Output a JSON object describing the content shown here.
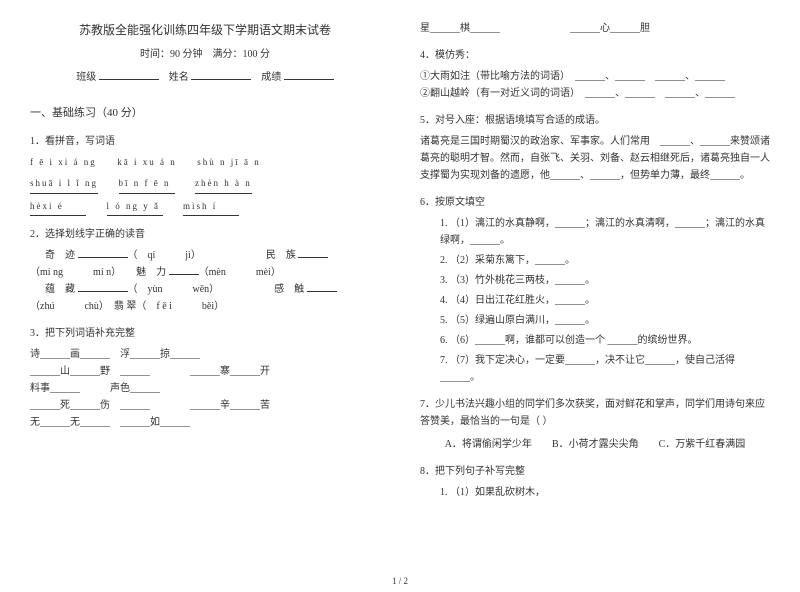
{
  "header": {
    "title": "苏教版全能强化训练四年级下学期语文期末试卷",
    "time_label": "时间：",
    "time_value": "90 分钟",
    "score_label": "满分：",
    "score_value": "100 分",
    "class_label": "班级",
    "name_label": "姓名",
    "grade_label": "成绩"
  },
  "section1": {
    "heading": "一、基础练习（40 分）",
    "q1": {
      "title": "1．看拼音，写词语",
      "row1": [
        "f ē i xi á ng",
        "kā i xu á n",
        "shù n jī ā n"
      ],
      "row2": [
        "shuā i l ǐ ng",
        "bī n f ē n",
        "zhèn h à n"
      ],
      "row3": [
        "hèxi é",
        "l ó ng y ǎ",
        "mìsh í"
      ]
    },
    "q2": {
      "title": "2．选择划线字正确的读音",
      "line1a": "奇　迹",
      "line1b": "（　qí　　　jì）",
      "line1c": "民　族",
      "line2a": "（mí ng　　　mí n）　　魅　力",
      "line2b": "（mèn　　　mèi）",
      "line3a": "蕴　藏",
      "line3b": "（　yùn　　　wēn）",
      "line3c": "感　触",
      "line4a": "（zhú　　　chù）　翡 翠",
      "line4b": "（　f ě i　　　běi）"
    },
    "q3": {
      "title": "3．把下列词语补充完整",
      "line1": "诗______画______　浮______掠______",
      "line2": "______山______野　______　　　　______寨______开",
      "line3": "料事______　　　声色______",
      "line4": "______死______伤　______　　　　______辛______苦",
      "line5": "无______无______　______如______"
    }
  },
  "right": {
    "top": {
      "a": "星______棋______",
      "b": "______心______胆"
    },
    "q4": {
      "title": "4．模仿秀：",
      "line1": "①大雨如注（带比喻方法的词语）　______、______　______、______",
      "line2": "②翻山越岭（有一对近义词的词语）　______、______　______、______"
    },
    "q5": {
      "title": "5．对号入座：根据语境填写合适的成语。",
      "para": "诸葛亮是三国时期蜀汉的政治家、军事家。人们常用　______、______来赞颂诸葛亮的聪明才智。然而，自张飞、关羽、刘备、赵云相继死后，诸葛亮独自一人支撑蜀为实现刘备的遗愿，他______、______，但势单力薄，最终______。"
    },
    "q6": {
      "title": "6．按原文填空",
      "items": [
        "（1）漓江的水真静啊，______；漓江的水真清啊，______；漓江的水真绿啊，______。",
        "（2）采菊东篱下，______。",
        "（3）竹外桃花三两枝，______。",
        "（4）日出江花红胜火，______。",
        "（5）绿遍山原白满川，______。",
        "（6）______啊，谁都可以创造一个 ______的缤纷世界。",
        "（7）我下定决心，一定要______，决不让它______，使自己活得______。"
      ]
    },
    "q7": {
      "title": "7．少儿书法兴趣小组的同学们多次获奖，面对鲜花和掌声，同学们用诗句来应答赞美，最恰当的一句是（ ）",
      "optA": "A．将谓偷闲学少年",
      "optB": "B．小荷才露尖尖角",
      "optC": "C．万紫千红春满园"
    },
    "q8": {
      "title": "8．把下列句子补写完整",
      "item": "（1）如果乱砍树木，"
    }
  },
  "footer": "1 / 2"
}
